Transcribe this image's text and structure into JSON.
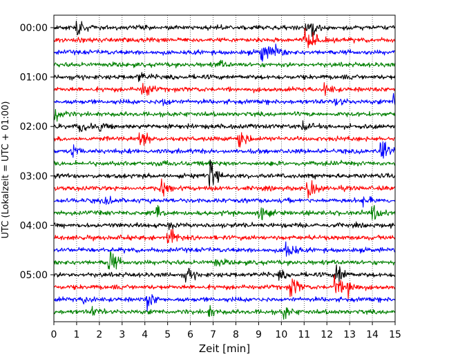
{
  "chart_data": {
    "type": "line",
    "title": "",
    "xlabel": "Zeit  [min]",
    "ylabel": "UTC (Lokalzeit = UTC + 01:00)",
    "xlim": [
      0,
      15
    ],
    "x_ticks": [
      "0",
      "1",
      "2",
      "3",
      "4",
      "5",
      "6",
      "7",
      "8",
      "9",
      "10",
      "11",
      "12",
      "13",
      "14",
      "15"
    ],
    "y_ticks": [
      "00:00",
      "01:00",
      "02:00",
      "03:00",
      "04:00",
      "05:00"
    ],
    "traces_per_hour": 4,
    "minutes_per_trace": 15,
    "colors": [
      "#000000",
      "#ff0000",
      "#0000ff",
      "#008000"
    ],
    "grid": "vertical dotted lines every minute",
    "series": [
      {
        "name": "00:00",
        "events": [
          {
            "t": 1.0,
            "amp": 1.2
          },
          {
            "t": 11.05,
            "amp": 1.0
          },
          {
            "t": 11.3,
            "amp": 0.7
          }
        ]
      },
      {
        "name": "00:15",
        "events": [
          {
            "t": 11.0,
            "amp": 1.6
          },
          {
            "t": 11.3,
            "amp": 1.0
          }
        ]
      },
      {
        "name": "00:30",
        "events": [
          {
            "t": 9.1,
            "amp": 2.0
          },
          {
            "t": 9.6,
            "amp": 1.4
          }
        ]
      },
      {
        "name": "00:45",
        "events": [
          {
            "t": 7.2,
            "amp": 0.6
          }
        ]
      },
      {
        "name": "01:00",
        "events": [
          {
            "t": 3.7,
            "amp": 0.8
          }
        ]
      },
      {
        "name": "01:15",
        "events": [
          {
            "t": 3.9,
            "amp": 1.8
          },
          {
            "t": 11.9,
            "amp": 1.0
          }
        ]
      },
      {
        "name": "01:30",
        "events": [
          {
            "t": 4.8,
            "amp": 0.7
          },
          {
            "t": 12.4,
            "amp": 0.8
          },
          {
            "t": 14.95,
            "amp": 2.4
          }
        ]
      },
      {
        "name": "01:45",
        "events": [
          {
            "t": 0.05,
            "amp": 1.6
          }
        ]
      },
      {
        "name": "02:00",
        "events": [
          {
            "t": 1.1,
            "amp": 1.0
          },
          {
            "t": 2.0,
            "amp": 0.7
          },
          {
            "t": 10.9,
            "amp": 0.6
          }
        ]
      },
      {
        "name": "02:15",
        "events": [
          {
            "t": 3.75,
            "amp": 2.4
          },
          {
            "t": 8.1,
            "amp": 2.2
          }
        ]
      },
      {
        "name": "02:30",
        "events": [
          {
            "t": 0.8,
            "amp": 0.9
          },
          {
            "t": 14.35,
            "amp": 2.4
          }
        ]
      },
      {
        "name": "02:45",
        "events": [
          {
            "t": 4.6,
            "amp": 0.5
          }
        ]
      },
      {
        "name": "03:00",
        "events": [
          {
            "t": 6.85,
            "amp": 2.4
          }
        ]
      },
      {
        "name": "03:15",
        "events": [
          {
            "t": 4.7,
            "amp": 1.6
          },
          {
            "t": 11.15,
            "amp": 2.4
          }
        ]
      },
      {
        "name": "03:30",
        "events": [
          {
            "t": 2.3,
            "amp": 0.6
          },
          {
            "t": 13.6,
            "amp": 0.6
          }
        ]
      },
      {
        "name": "03:45",
        "events": [
          {
            "t": 4.5,
            "amp": 1.2
          },
          {
            "t": 9.0,
            "amp": 1.4
          },
          {
            "t": 14.0,
            "amp": 1.6
          }
        ]
      },
      {
        "name": "04:00",
        "events": [
          {
            "t": 5.0,
            "amp": 0.5
          }
        ]
      },
      {
        "name": "04:15",
        "events": [
          {
            "t": 5.0,
            "amp": 2.0
          }
        ]
      },
      {
        "name": "04:30",
        "events": [
          {
            "t": 10.2,
            "amp": 2.2
          }
        ]
      },
      {
        "name": "04:45",
        "events": [
          {
            "t": 2.4,
            "amp": 2.4
          },
          {
            "t": 7.1,
            "amp": 0.6
          }
        ]
      },
      {
        "name": "05:00",
        "events": [
          {
            "t": 5.8,
            "amp": 1.2
          },
          {
            "t": 12.4,
            "amp": 2.4
          },
          {
            "t": 9.9,
            "amp": 0.6
          }
        ]
      },
      {
        "name": "05:15",
        "events": [
          {
            "t": 10.4,
            "amp": 2.0
          },
          {
            "t": 12.3,
            "amp": 2.0
          },
          {
            "t": 12.9,
            "amp": 1.8
          }
        ]
      },
      {
        "name": "05:30",
        "events": [
          {
            "t": 4.1,
            "amp": 1.4
          },
          {
            "t": 1.3,
            "amp": 0.6
          }
        ]
      },
      {
        "name": "05:45",
        "events": [
          {
            "t": 1.7,
            "amp": 0.6
          },
          {
            "t": 10.1,
            "amp": 1.0
          },
          {
            "t": 6.8,
            "amp": 0.8
          }
        ]
      }
    ]
  }
}
